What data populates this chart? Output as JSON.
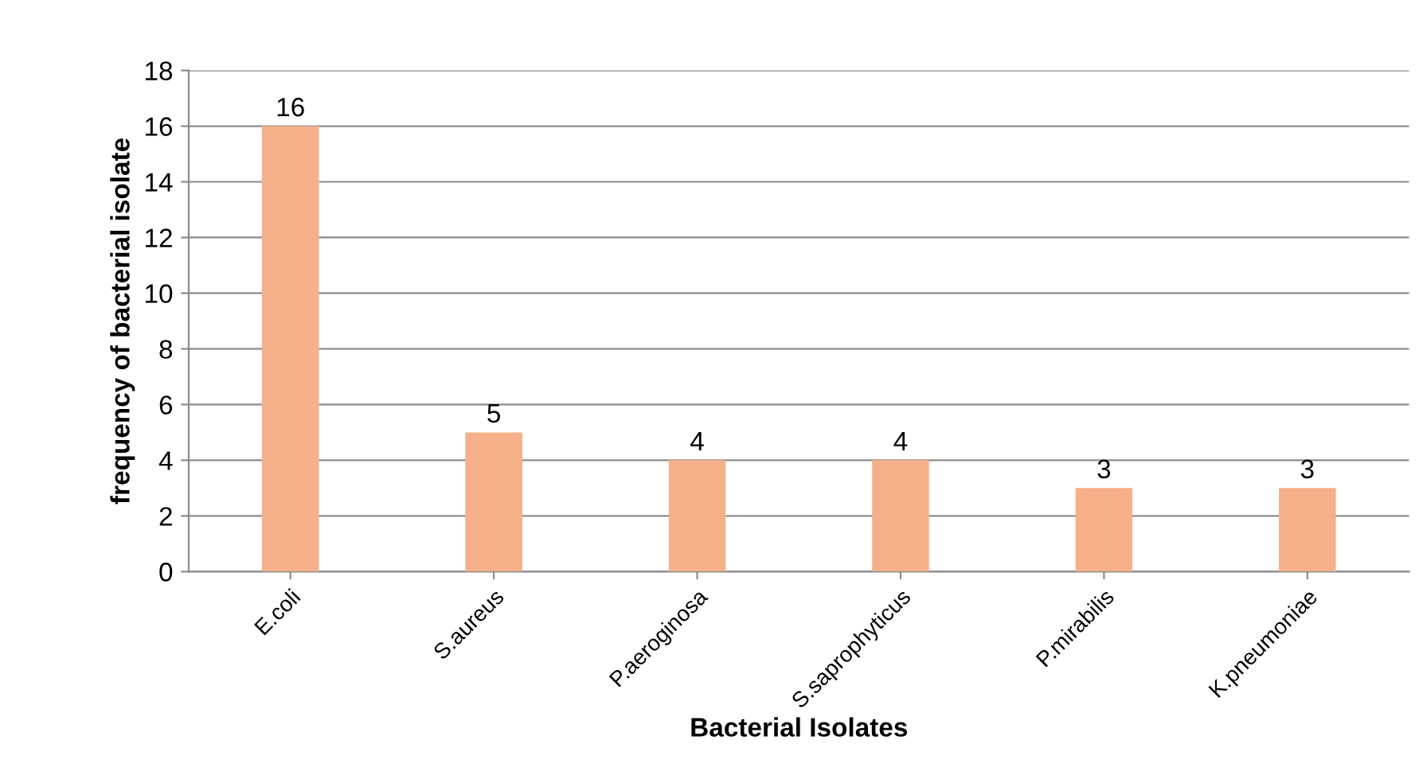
{
  "chart_data": {
    "type": "bar",
    "categories": [
      "E.coli",
      "S.aureus",
      "P.aeroginosa",
      "S.saprophyticus",
      "P.mirabilis",
      "K.pneumoniae"
    ],
    "values": [
      16,
      5,
      4,
      4,
      3,
      3
    ],
    "color": "#f5b08a",
    "xlabel": "Bacterial Isolates",
    "ylabel": "frequency of bacterial isolate",
    "ylim": [
      0,
      18
    ],
    "yticks": [
      0,
      2,
      4,
      6,
      8,
      10,
      12,
      14,
      16,
      18
    ],
    "grid": "y",
    "data_labels": true
  }
}
